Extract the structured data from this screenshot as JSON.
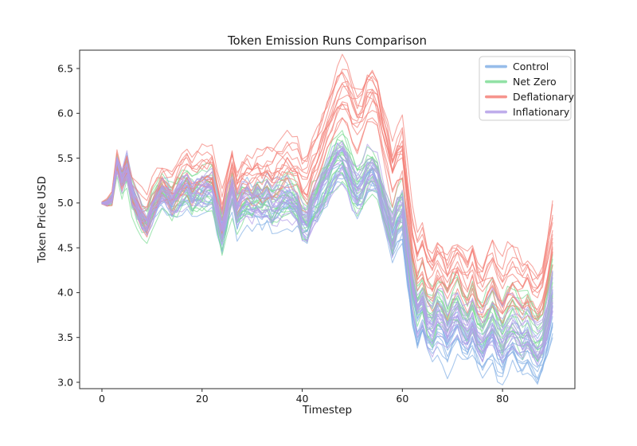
{
  "chart_data": {
    "type": "line",
    "title": "Token Emission Runs Comparison",
    "xlabel": "Timestep",
    "ylabel": "Token Price USD",
    "x_ticks": [
      0,
      20,
      40,
      60,
      80
    ],
    "y_ticks": [
      3.0,
      3.5,
      4.0,
      4.5,
      5.0,
      5.5,
      6.0,
      6.5
    ],
    "xlim": [
      -4.5,
      94.5
    ],
    "ylim": [
      2.93,
      6.67
    ],
    "grid": false,
    "legend_position": "upper right",
    "x_start": 0,
    "x_step": 1,
    "n_points": 91,
    "runs_per_scenario": 14,
    "line_opacity": 0.7,
    "line_width": 1.1,
    "spread": [
      0.01,
      0.02,
      0.03,
      0.05,
      0.05,
      0.06,
      0.07,
      0.075,
      0.08,
      0.085,
      0.09,
      0.095,
      0.1,
      0.105,
      0.11,
      0.115,
      0.12,
      0.12,
      0.12,
      0.125,
      0.13,
      0.13,
      0.13,
      0.13,
      0.13,
      0.133,
      0.135,
      0.138,
      0.14,
      0.143,
      0.145,
      0.148,
      0.15,
      0.153,
      0.155,
      0.158,
      0.16,
      0.16,
      0.16,
      0.16,
      0.16,
      0.165,
      0.17,
      0.175,
      0.18,
      0.188,
      0.195,
      0.203,
      0.21,
      0.208,
      0.205,
      0.203,
      0.2,
      0.2,
      0.2,
      0.2,
      0.2,
      0.2,
      0.2,
      0.2,
      0.2,
      0.203,
      0.205,
      0.208,
      0.21,
      0.213,
      0.215,
      0.218,
      0.22,
      0.22,
      0.22,
      0.22,
      0.22,
      0.22,
      0.22,
      0.22,
      0.22,
      0.223,
      0.225,
      0.228,
      0.23,
      0.23,
      0.23,
      0.23,
      0.23,
      0.23,
      0.23,
      0.23,
      0.23,
      0.235,
      0.24
    ],
    "series": [
      {
        "name": "Control",
        "color": "#85b1e6",
        "spread_scale": 0.95,
        "mean": [
          5.0,
          5.0,
          5.05,
          5.45,
          5.25,
          5.4,
          5.1,
          4.95,
          4.82,
          4.76,
          4.92,
          5.02,
          5.1,
          5.04,
          4.96,
          5.02,
          5.08,
          5.12,
          5.03,
          5.06,
          5.09,
          5.11,
          5.13,
          4.88,
          4.62,
          4.88,
          5.1,
          4.83,
          4.94,
          4.97,
          4.91,
          4.96,
          4.91,
          4.97,
          4.89,
          4.93,
          4.97,
          5.0,
          4.96,
          4.91,
          4.74,
          4.7,
          4.88,
          4.95,
          5.08,
          5.18,
          5.3,
          5.42,
          5.44,
          5.36,
          5.2,
          5.1,
          5.14,
          5.28,
          5.32,
          5.24,
          4.98,
          4.78,
          4.56,
          4.74,
          4.8,
          4.32,
          3.88,
          3.62,
          3.72,
          3.52,
          3.47,
          3.62,
          3.57,
          3.44,
          3.58,
          3.65,
          3.52,
          3.44,
          3.55,
          3.37,
          3.3,
          3.42,
          3.5,
          3.34,
          3.24,
          3.38,
          3.45,
          3.38,
          3.32,
          3.4,
          3.3,
          3.24,
          3.32,
          3.52,
          3.78
        ]
      },
      {
        "name": "Net Zero",
        "color": "#7fdd96",
        "spread_scale": 1.1,
        "mean": [
          5.0,
          5.0,
          5.05,
          5.45,
          5.25,
          5.4,
          5.1,
          4.95,
          4.82,
          4.77,
          4.95,
          5.05,
          5.13,
          5.07,
          4.99,
          5.05,
          5.11,
          5.15,
          5.06,
          5.09,
          5.12,
          5.14,
          5.16,
          4.91,
          4.65,
          4.91,
          5.13,
          4.86,
          4.97,
          5.02,
          4.99,
          5.06,
          5.01,
          5.07,
          4.99,
          5.03,
          5.07,
          5.1,
          5.06,
          5.01,
          4.84,
          4.8,
          4.98,
          5.05,
          5.18,
          5.28,
          5.4,
          5.52,
          5.54,
          5.46,
          5.3,
          5.2,
          5.24,
          5.38,
          5.42,
          5.34,
          5.1,
          4.92,
          4.72,
          4.92,
          5.0,
          4.57,
          4.18,
          3.92,
          4.02,
          3.82,
          3.77,
          3.92,
          3.87,
          3.74,
          3.88,
          3.95,
          3.82,
          3.74,
          3.85,
          3.67,
          3.6,
          3.72,
          3.8,
          3.64,
          3.54,
          3.68,
          3.75,
          3.68,
          3.62,
          3.7,
          3.6,
          3.54,
          3.62,
          3.86,
          4.18
        ]
      },
      {
        "name": "Deflationary",
        "color": "#f48179",
        "spread_scale": 1.3,
        "mean": [
          5.0,
          5.0,
          5.05,
          5.45,
          5.25,
          5.41,
          5.13,
          5.0,
          4.89,
          4.84,
          5.02,
          5.14,
          5.23,
          5.18,
          5.11,
          5.18,
          5.25,
          5.3,
          5.22,
          5.27,
          5.31,
          5.34,
          5.37,
          5.11,
          4.84,
          5.12,
          5.36,
          5.1,
          5.22,
          5.27,
          5.23,
          5.3,
          5.26,
          5.34,
          5.27,
          5.33,
          5.39,
          5.44,
          5.42,
          5.39,
          5.24,
          5.23,
          5.43,
          5.54,
          5.7,
          5.85,
          6.02,
          6.19,
          6.26,
          6.2,
          6.05,
          5.97,
          6.02,
          6.18,
          6.24,
          6.13,
          5.83,
          5.61,
          5.36,
          5.55,
          5.62,
          5.09,
          4.6,
          4.33,
          4.42,
          4.22,
          4.17,
          4.32,
          4.27,
          4.14,
          4.28,
          4.35,
          4.22,
          4.14,
          4.25,
          4.07,
          4.0,
          4.12,
          4.2,
          4.04,
          3.94,
          4.08,
          4.15,
          4.08,
          4.02,
          4.1,
          4.0,
          3.94,
          4.02,
          4.3,
          4.63
        ]
      },
      {
        "name": "Inflationary",
        "color": "#b49fe8",
        "spread_scale": 0.85,
        "mean": [
          5.0,
          5.0,
          5.05,
          5.45,
          5.25,
          5.4,
          5.1,
          4.95,
          4.82,
          4.77,
          4.94,
          5.05,
          5.15,
          5.09,
          5.01,
          5.07,
          5.13,
          5.17,
          5.08,
          5.11,
          5.14,
          5.16,
          5.18,
          4.93,
          4.67,
          4.93,
          5.15,
          4.88,
          4.99,
          5.02,
          4.96,
          5.01,
          4.96,
          5.02,
          4.94,
          4.98,
          5.02,
          5.05,
          5.01,
          4.96,
          4.79,
          4.75,
          4.93,
          5.0,
          5.13,
          5.23,
          5.35,
          5.47,
          5.49,
          5.41,
          5.25,
          5.15,
          5.19,
          5.33,
          5.37,
          5.29,
          5.05,
          4.86,
          4.65,
          4.84,
          4.91,
          4.46,
          4.06,
          3.8,
          3.9,
          3.7,
          3.65,
          3.8,
          3.75,
          3.62,
          3.76,
          3.83,
          3.7,
          3.62,
          3.73,
          3.55,
          3.48,
          3.6,
          3.68,
          3.52,
          3.42,
          3.56,
          3.63,
          3.56,
          3.5,
          3.58,
          3.48,
          3.42,
          3.5,
          3.73,
          4.03
        ]
      }
    ],
    "colors": {
      "control": "#85b1e6",
      "net_zero": "#7fdd96",
      "deflationary": "#f48179",
      "inflationary": "#b49fe8",
      "spine": "#2b2b2b",
      "background": "#ffffff",
      "legend_border": "#cccccc"
    }
  }
}
